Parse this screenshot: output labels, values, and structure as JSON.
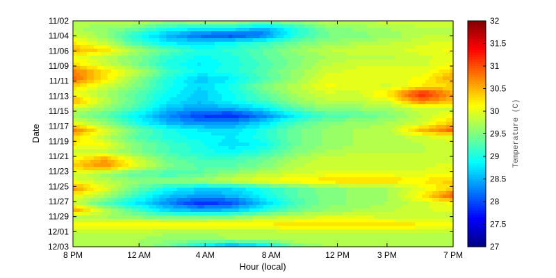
{
  "chart_data": {
    "type": "heatmap",
    "subtype": "filled-contour",
    "title": "",
    "xlabel": "Hour (local)",
    "ylabel": "Date",
    "colorbar_label": "Temperature (C)",
    "colormap": "jet",
    "zlim": [
      27,
      32
    ],
    "x_tick_labels": [
      "8 PM",
      "12 AM",
      "4 AM",
      "8 AM",
      "12 PM",
      "3 PM",
      "7 PM"
    ],
    "x_tick_hours": [
      20,
      24,
      28,
      32,
      36,
      39,
      43
    ],
    "xlim_hours": [
      20,
      43
    ],
    "y_tick_labels": [
      "11/02",
      "11/04",
      "11/06",
      "11/09",
      "11/11",
      "11/13",
      "11/15",
      "11/17",
      "11/19",
      "11/21",
      "11/23",
      "11/25",
      "11/27",
      "11/29",
      "12/01",
      "12/03"
    ],
    "colorbar_ticks": [
      27,
      27.5,
      28,
      28.5,
      29,
      29.5,
      30,
      30.5,
      31,
      31.5,
      32
    ],
    "grid": false,
    "values_approx": {
      "columns_hours": [
        20,
        22,
        24,
        26,
        28,
        30,
        32,
        34,
        36,
        38,
        40,
        42,
        43
      ],
      "rows_dates": [
        "11/02",
        "11/03",
        "11/04",
        "11/05",
        "11/06",
        "11/07",
        "11/08",
        "11/09",
        "11/10",
        "11/11",
        "11/12",
        "11/13",
        "11/14",
        "11/15",
        "11/16",
        "11/17",
        "11/18",
        "11/19",
        "11/20",
        "11/21",
        "11/22",
        "11/23",
        "11/24",
        "11/25",
        "11/26",
        "11/27",
        "11/28",
        "11/29",
        "11/30",
        "12/01",
        "12/02",
        "12/03"
      ],
      "z": [
        [
          29.8,
          29.8,
          29.9,
          29.7,
          29.8,
          29.8,
          29.6,
          29.7,
          29.8,
          29.8,
          29.9,
          29.9,
          29.9
        ],
        [
          29.7,
          29.6,
          29.4,
          29.0,
          28.9,
          28.9,
          28.5,
          29.0,
          29.5,
          29.6,
          29.7,
          29.8,
          29.8
        ],
        [
          29.9,
          29.6,
          29.0,
          28.5,
          28.1,
          27.9,
          28.2,
          29.0,
          29.4,
          29.5,
          29.6,
          29.8,
          29.8
        ],
        [
          30.2,
          29.8,
          29.2,
          28.8,
          28.7,
          28.9,
          29.1,
          29.4,
          29.6,
          29.7,
          29.8,
          29.9,
          30.0
        ],
        [
          30.5,
          30.3,
          29.7,
          29.3,
          29.0,
          29.1,
          29.3,
          29.6,
          29.8,
          29.9,
          29.9,
          30.0,
          30.1
        ],
        [
          30.1,
          29.8,
          29.5,
          29.1,
          28.9,
          29.0,
          29.3,
          29.5,
          29.7,
          29.8,
          29.8,
          29.9,
          30.0
        ],
        [
          30.3,
          29.9,
          29.5,
          29.0,
          28.8,
          29.0,
          29.2,
          29.5,
          29.8,
          29.9,
          29.9,
          29.9,
          30.1
        ],
        [
          30.8,
          30.3,
          29.8,
          29.2,
          28.9,
          29.0,
          29.3,
          29.6,
          29.9,
          30.0,
          30.0,
          30.0,
          30.4
        ],
        [
          30.9,
          30.2,
          29.6,
          29.0,
          28.6,
          28.8,
          29.2,
          29.6,
          30.0,
          30.0,
          30.0,
          30.1,
          30.6
        ],
        [
          30.3,
          29.9,
          29.5,
          29.0,
          28.7,
          29.0,
          29.5,
          29.8,
          30.1,
          30.0,
          29.9,
          30.2,
          30.3
        ],
        [
          30.0,
          29.7,
          29.3,
          28.9,
          28.6,
          28.9,
          29.3,
          29.7,
          29.9,
          29.9,
          30.3,
          31.3,
          30.6
        ],
        [
          30.6,
          29.8,
          29.3,
          28.8,
          28.6,
          28.9,
          29.2,
          29.6,
          29.8,
          29.8,
          30.0,
          30.8,
          30.4
        ],
        [
          29.9,
          29.6,
          29.2,
          28.6,
          28.4,
          28.5,
          28.8,
          29.3,
          29.6,
          29.6,
          29.7,
          29.9,
          29.9
        ],
        [
          29.6,
          29.3,
          28.8,
          28.3,
          27.9,
          27.8,
          28.2,
          28.8,
          29.2,
          29.3,
          29.5,
          29.8,
          30.1
        ],
        [
          30.0,
          29.6,
          29.0,
          28.5,
          28.3,
          28.3,
          28.7,
          29.2,
          29.5,
          29.6,
          29.7,
          29.9,
          30.4
        ],
        [
          30.8,
          30.0,
          29.4,
          29.0,
          28.8,
          28.7,
          29.0,
          29.4,
          29.6,
          29.7,
          29.8,
          30.5,
          30.9
        ],
        [
          30.3,
          29.8,
          29.3,
          29.0,
          28.9,
          28.8,
          29.0,
          29.4,
          29.6,
          29.7,
          29.7,
          29.9,
          30.0
        ],
        [
          30.2,
          30.1,
          29.5,
          29.2,
          29.0,
          28.7,
          28.9,
          29.4,
          29.6,
          29.7,
          29.7,
          29.8,
          29.9
        ],
        [
          29.9,
          29.8,
          29.5,
          29.2,
          29.0,
          28.9,
          29.1,
          29.5,
          29.7,
          29.8,
          29.8,
          29.8,
          29.9
        ],
        [
          30.1,
          30.6,
          29.9,
          29.4,
          29.2,
          29.2,
          29.4,
          29.7,
          29.9,
          29.9,
          29.9,
          29.9,
          29.9
        ],
        [
          30.4,
          30.7,
          30.0,
          29.5,
          29.3,
          29.3,
          29.5,
          29.8,
          29.9,
          29.9,
          29.9,
          29.9,
          30.0
        ],
        [
          29.9,
          29.6,
          29.3,
          29.2,
          29.3,
          29.6,
          29.8,
          29.9,
          30.0,
          30.0,
          30.0,
          30.0,
          30.1
        ],
        [
          30.0,
          29.8,
          29.6,
          29.6,
          29.7,
          29.9,
          30.1,
          30.2,
          30.3,
          30.4,
          30.3,
          30.2,
          30.4
        ],
        [
          30.7,
          30.0,
          29.4,
          28.9,
          28.7,
          28.7,
          29.0,
          29.3,
          29.5,
          29.6,
          29.7,
          30.0,
          30.3
        ],
        [
          30.1,
          29.7,
          29.1,
          28.6,
          28.4,
          28.5,
          28.9,
          29.3,
          29.5,
          29.6,
          29.7,
          30.2,
          31.0
        ],
        [
          29.9,
          29.3,
          28.8,
          28.3,
          27.8,
          28.0,
          28.6,
          29.2,
          29.5,
          29.6,
          29.7,
          29.9,
          30.1
        ],
        [
          30.6,
          29.8,
          29.2,
          28.7,
          28.5,
          28.6,
          29.0,
          29.4,
          29.6,
          29.7,
          29.8,
          29.9,
          30.0
        ],
        [
          29.7,
          29.7,
          29.6,
          29.5,
          29.5,
          29.6,
          29.8,
          29.9,
          30.0,
          30.0,
          29.9,
          29.9,
          29.8
        ],
        [
          30.1,
          30.2,
          30.2,
          30.2,
          30.2,
          30.2,
          30.2,
          30.3,
          30.3,
          30.3,
          30.3,
          30.2,
          30.1
        ],
        [
          29.8,
          29.8,
          29.8,
          29.7,
          29.7,
          29.7,
          29.7,
          29.8,
          29.8,
          29.8,
          29.8,
          29.8,
          29.8
        ],
        [
          29.7,
          29.7,
          29.7,
          29.6,
          29.6,
          29.7,
          29.7,
          29.8,
          29.8,
          29.7,
          29.7,
          29.7,
          29.7
        ],
        [
          29.8,
          29.8,
          29.7,
          29.4,
          28.8,
          28.3,
          28.6,
          29.4,
          29.7,
          29.8,
          29.8,
          29.8,
          29.8
        ]
      ]
    }
  }
}
